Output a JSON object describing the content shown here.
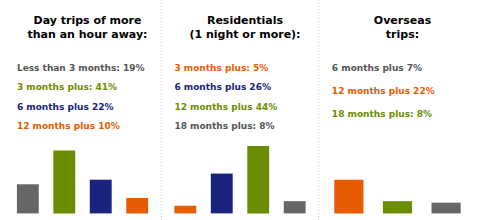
{
  "chart_data": [
    {
      "type": "bar",
      "title": "Day trips of more\nthan an hour away:",
      "annotations": [
        {
          "text": "Less than 3 months: 19%",
          "color": "#555555"
        },
        {
          "text": "3 months plus: 41%",
          "color": "#6b8e00"
        },
        {
          "text": "6 months plus 22%",
          "color": "#1a237e"
        },
        {
          "text": "12 months plus 10%",
          "color": "#e65c00"
        }
      ],
      "categories": [
        null,
        null,
        null,
        null
      ],
      "values": [
        19,
        41,
        22,
        10
      ],
      "colors": [
        "#666666",
        "#6b8e00",
        "#1a237e",
        "#e65c00"
      ],
      "ylim": [
        0,
        50
      ],
      "grid": false,
      "tick_labels": false
    },
    {
      "type": "bar",
      "title": "Residentials\n(1 night or more):",
      "annotations": [
        {
          "text": "3 months plus: 5%",
          "color": "#e65c00"
        },
        {
          "text": "6 months plus 26%",
          "color": "#1a237e"
        },
        {
          "text": "12 months plus 44%",
          "color": "#6b8e00"
        },
        {
          "text": "18 months plus: 8%",
          "color": "#555555"
        }
      ],
      "categories": [
        null,
        null,
        null,
        null
      ],
      "values": [
        5,
        26,
        44,
        8
      ],
      "colors": [
        "#e65c00",
        "#1a237e",
        "#6b8e00",
        "#666666"
      ],
      "ylim": [
        0,
        50
      ],
      "grid": false,
      "tick_labels": false
    },
    {
      "type": "bar",
      "title": "Overseas\ntrips:",
      "annotations": [
        {
          "text": "6 months plus 7%",
          "color": "#555555"
        },
        {
          "text": "12 months plus 22%",
          "color": "#e65c00"
        },
        {
          "text": "18 months plus: 8%",
          "color": "#6b8e00"
        }
      ],
      "categories": [
        null,
        null,
        null
      ],
      "values": [
        22,
        8,
        7
      ],
      "colors": [
        "#e65c00",
        "#6b8e00",
        "#666666"
      ],
      "ylim": [
        0,
        50
      ],
      "grid": false,
      "tick_labels": false
    }
  ]
}
